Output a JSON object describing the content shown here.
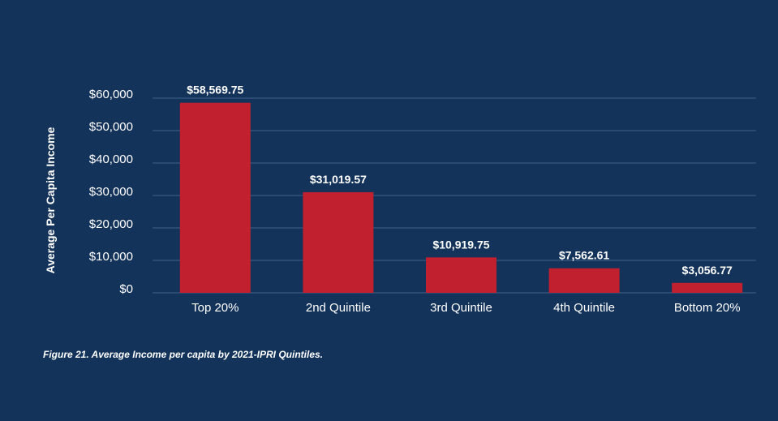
{
  "chart_data": {
    "type": "bar",
    "categories": [
      "Top 20%",
      "2nd Quintile",
      "3rd Quintile",
      "4th Quintile",
      "Bottom 20%"
    ],
    "values": [
      58569.75,
      31019.57,
      10919.75,
      7562.61,
      3056.77
    ],
    "data_labels": [
      "$58,569.75",
      "$31,019.57",
      "$10,919.75",
      "$7,562.61",
      "$3,056.77"
    ],
    "ylabel": "Average Per Capita Income",
    "ylim": [
      0,
      60000
    ],
    "yticks": [
      0,
      10000,
      20000,
      30000,
      40000,
      50000,
      60000
    ],
    "ytick_labels": [
      "$0",
      "$10,000",
      "$20,000",
      "$30,000",
      "$40,000",
      "$50,000",
      "$60,000"
    ],
    "grid": true,
    "legend": "none"
  },
  "caption": "Figure 21. Average Income per capita by 2021-IPRI Quintiles.",
  "colors": {
    "background": "#13335a",
    "bar": "#c1202f",
    "gridline": "#43618a",
    "text": "#ffffff"
  }
}
